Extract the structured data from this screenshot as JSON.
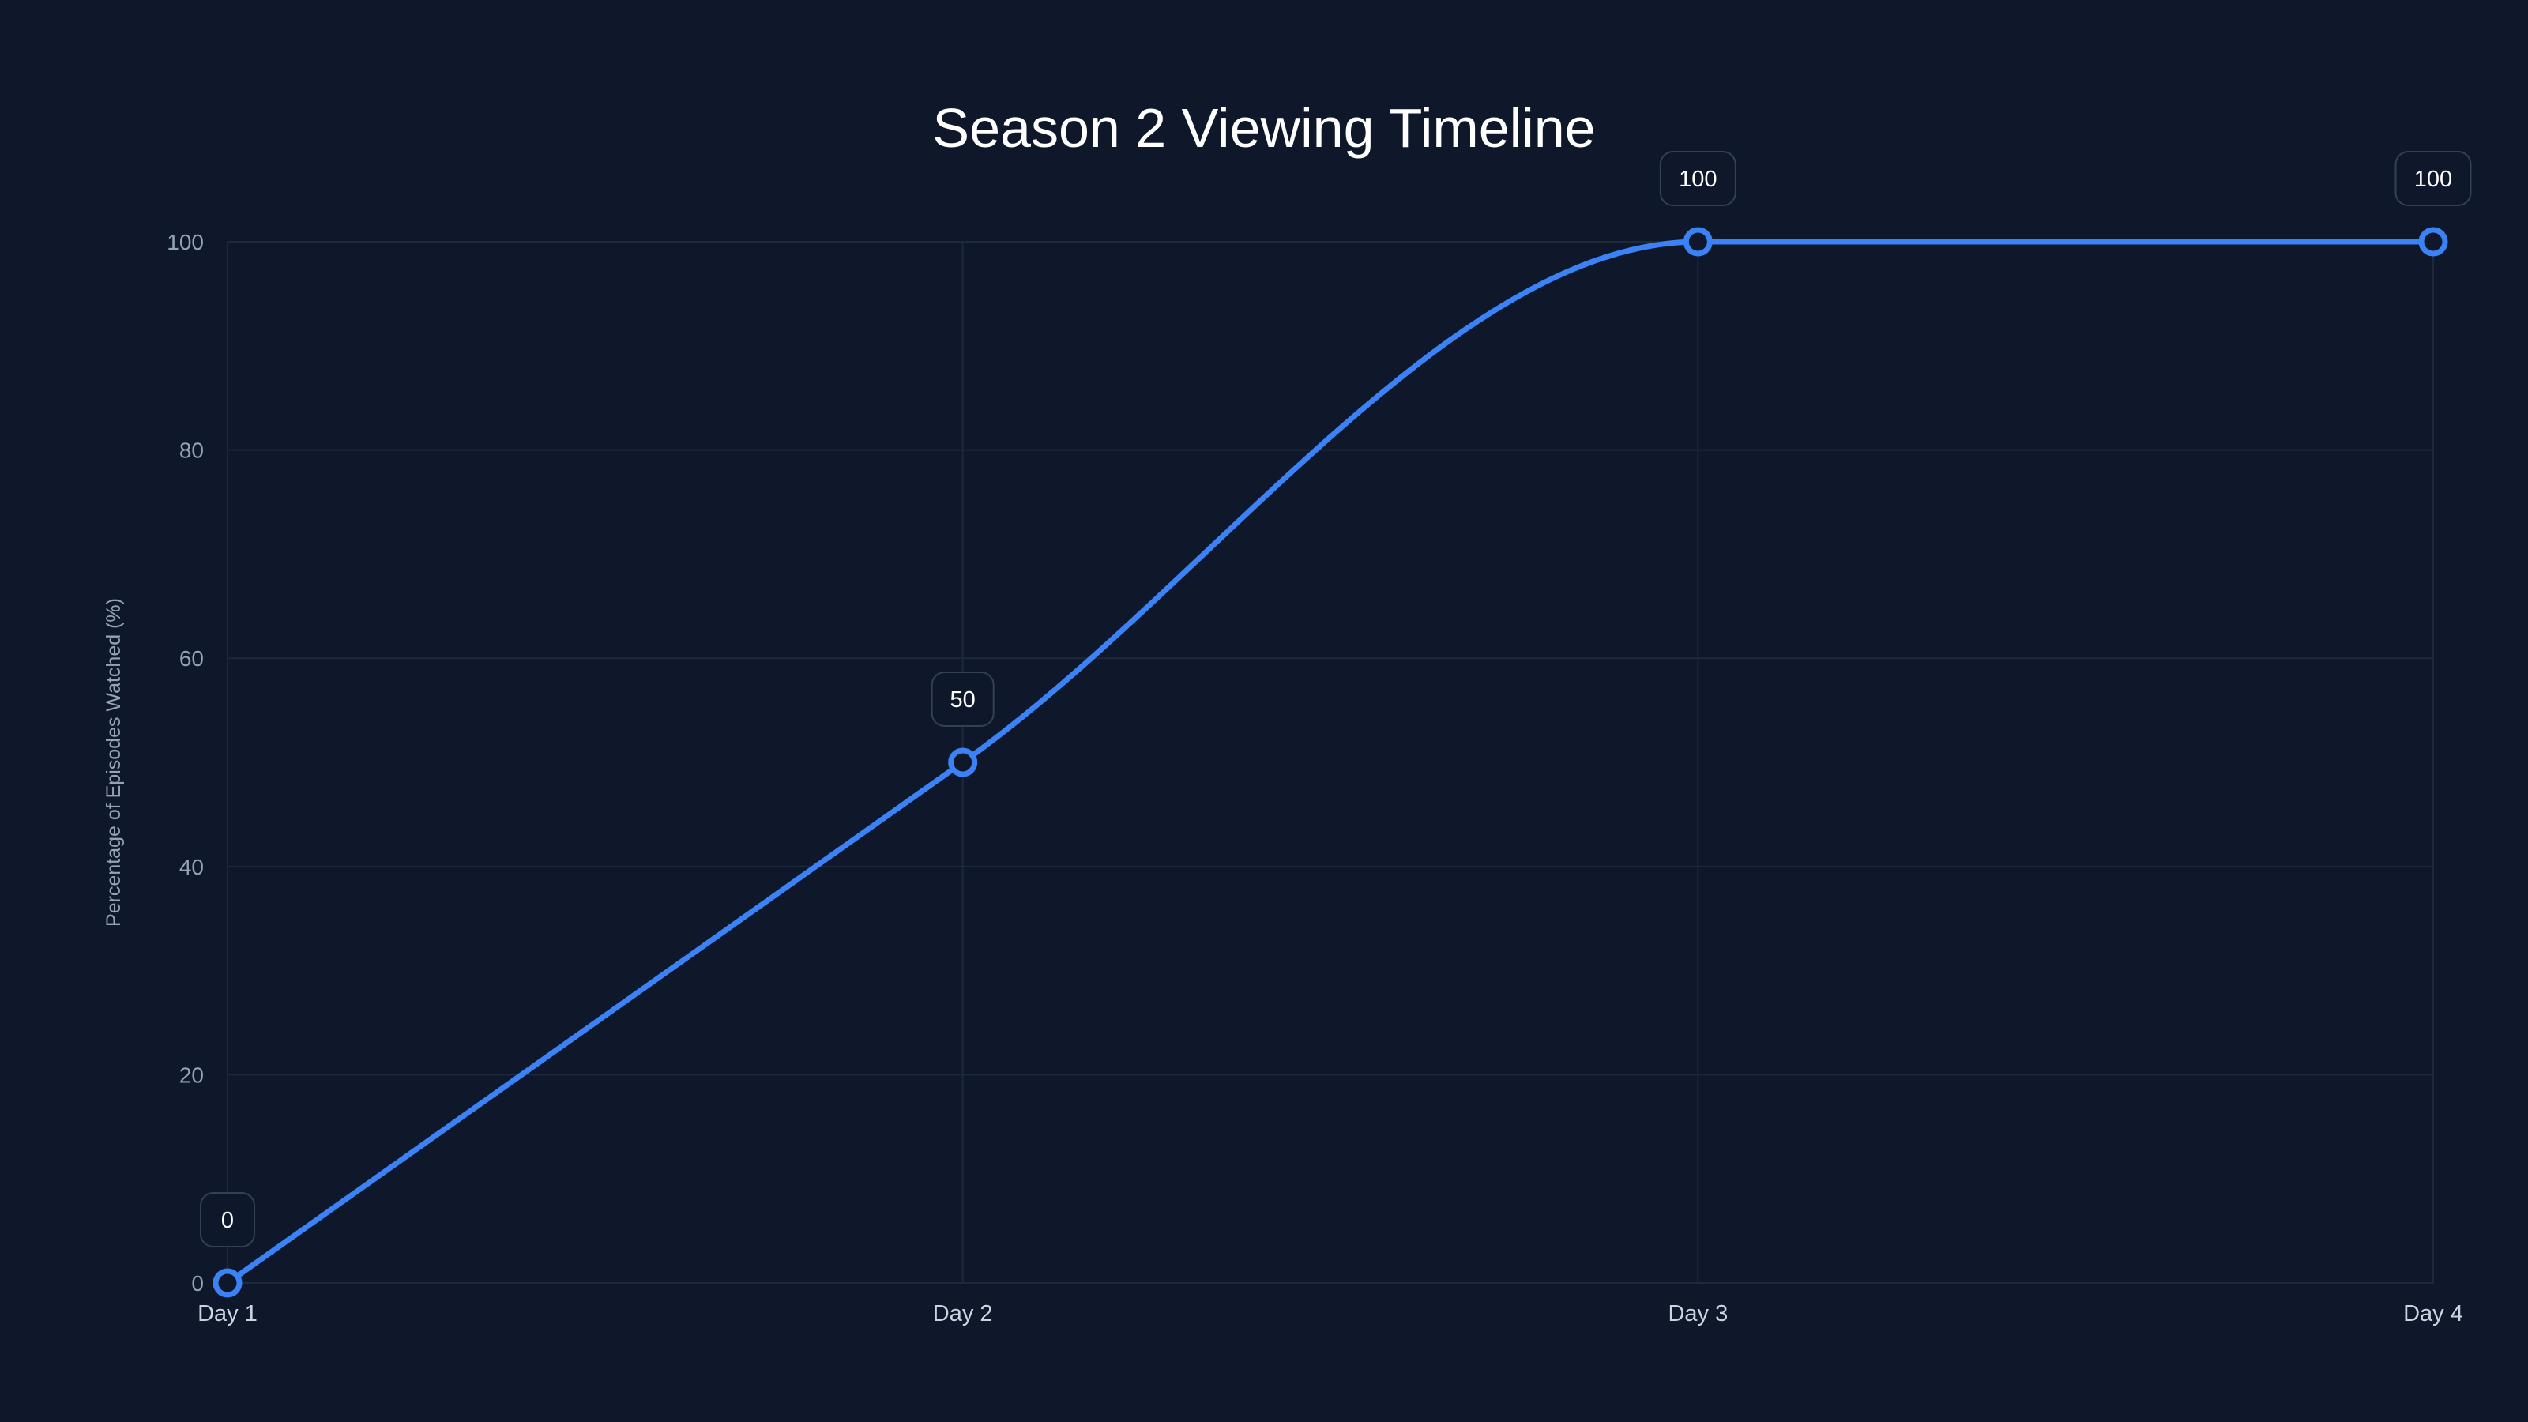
{
  "chart_data": {
    "type": "line",
    "title": "Season 2 Viewing Timeline",
    "xlabel": "",
    "ylabel": "Percentage of Episodes Watched (%)",
    "categories": [
      "Day 1",
      "Day 2",
      "Day 3",
      "Day 4"
    ],
    "series": [
      {
        "name": "Episodes Watched",
        "values": [
          0,
          50,
          100,
          100
        ],
        "color": "#3b82f6"
      }
    ],
    "data_labels": [
      "0",
      "50",
      "100",
      "100"
    ],
    "ylim": [
      0,
      100
    ],
    "yticks": [
      0,
      20,
      40,
      60,
      80,
      100
    ],
    "grid": true,
    "legend": "none",
    "colors": {
      "background": "#0f172a",
      "grid": "#1e293b",
      "line": "#3b82f6"
    }
  }
}
